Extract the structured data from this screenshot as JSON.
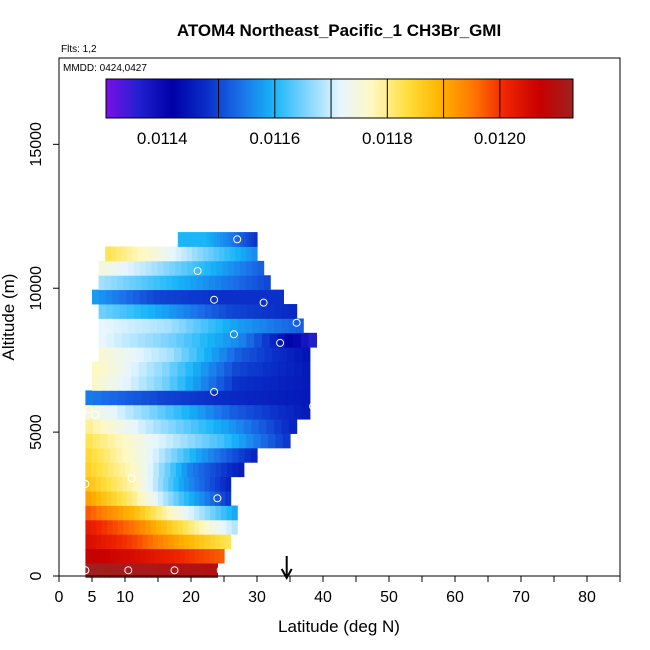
{
  "chart_data": {
    "type": "heatmap",
    "title": "ATOM4 Northeast_Pacific_1 CH3Br_GMI",
    "flights_note": "Flts: 1,2",
    "date_note": "MMDD: 0424,0427",
    "xlabel": "Latitude (deg N)",
    "ylabel": "Altitude (m)",
    "xlim": [
      0,
      85
    ],
    "ylim": [
      0,
      18000
    ],
    "x_ticks": [
      0,
      5,
      10,
      20,
      30,
      40,
      50,
      60,
      70,
      80
    ],
    "x_minor_ticks": [
      15,
      25,
      35,
      45,
      55,
      65,
      75,
      85
    ],
    "y_ticks": [
      0,
      5000,
      10000,
      15000
    ],
    "colorbar": {
      "min": 0.0113,
      "max": 0.01213,
      "tick_values": [
        0.0114,
        0.0116,
        0.0118,
        0.012
      ],
      "tick_labels": [
        "0.0114",
        "0.0116",
        "0.0118",
        "0.0120"
      ],
      "boundaries": [
        0.0115,
        0.0116,
        0.0117,
        0.0118,
        0.0119,
        0.012
      ],
      "colors": [
        "#7a10e8",
        "#2020d0",
        "#0000a8",
        "#0a2ec8",
        "#1a6ee8",
        "#16b4f8",
        "#7fd4ff",
        "#e6f6ff",
        "#fff8c0",
        "#ffe040",
        "#ffb400",
        "#ff7800",
        "#ee2200",
        "#c80000",
        "#a02020"
      ]
    },
    "altitude_bands": [
      {
        "alt": 200,
        "lat_min": 4,
        "lat_max": 24,
        "values": [
          0.01213,
          0.01212,
          0.01211,
          0.0121
        ]
      },
      {
        "alt": 700,
        "lat_min": 4,
        "lat_max": 25,
        "values": [
          0.01208,
          0.01205,
          0.01201,
          0.01197
        ]
      },
      {
        "alt": 1200,
        "lat_min": 4,
        "lat_max": 26,
        "values": [
          0.01205,
          0.01199,
          0.0119,
          0.01182
        ]
      },
      {
        "alt": 1700,
        "lat_min": 4,
        "lat_max": 27,
        "values": [
          0.01203,
          0.01195,
          0.01182,
          0.01168
        ]
      },
      {
        "alt": 2200,
        "lat_min": 4,
        "lat_max": 27,
        "values": [
          0.01198,
          0.01188,
          0.01172,
          0.01158
        ]
      },
      {
        "alt": 2700,
        "lat_min": 4,
        "lat_max": 26,
        "values": [
          0.01192,
          0.0118,
          0.01162,
          0.01148
        ]
      },
      {
        "alt": 3200,
        "lat_min": 4,
        "lat_max": 26,
        "values": [
          0.01188,
          0.01178,
          0.01158,
          0.01146
        ]
      },
      {
        "alt": 3700,
        "lat_min": 4,
        "lat_max": 28,
        "values": [
          0.01186,
          0.01176,
          0.01155,
          0.01145
        ]
      },
      {
        "alt": 4200,
        "lat_min": 4,
        "lat_max": 30,
        "values": [
          0.01185,
          0.01174,
          0.01158,
          0.01146
        ]
      },
      {
        "alt": 4700,
        "lat_min": 4,
        "lat_max": 35,
        "values": [
          0.01183,
          0.01172,
          0.01162,
          0.01148
        ]
      },
      {
        "alt": 5200,
        "lat_min": 4,
        "lat_max": 36,
        "values": [
          0.0118,
          0.01168,
          0.01158,
          0.01146
        ]
      },
      {
        "alt": 5700,
        "lat_min": 4,
        "lat_max": 38,
        "values": [
          0.01176,
          0.01164,
          0.01152,
          0.01145
        ]
      },
      {
        "alt": 6200,
        "lat_min": 4,
        "lat_max": 38,
        "values": [
          0.01155,
          0.0115,
          0.01147,
          0.01145
        ]
      },
      {
        "alt": 6700,
        "lat_min": 5,
        "lat_max": 38,
        "values": [
          0.01177,
          0.01165,
          0.01148,
          0.01145
        ]
      },
      {
        "alt": 7200,
        "lat_min": 5,
        "lat_max": 38,
        "values": [
          0.01178,
          0.01166,
          0.0115,
          0.01145
        ]
      },
      {
        "alt": 7700,
        "lat_min": 6,
        "lat_max": 38,
        "values": [
          0.01176,
          0.01168,
          0.01152,
          0.01144
        ]
      },
      {
        "alt": 8200,
        "lat_min": 6,
        "lat_max": 39,
        "values": [
          0.01172,
          0.01165,
          0.01155,
          0.01135
        ]
      },
      {
        "alt": 8700,
        "lat_min": 6,
        "lat_max": 37,
        "values": [
          0.01172,
          0.01168,
          0.01158,
          0.01152
        ]
      },
      {
        "alt": 9200,
        "lat_min": 6,
        "lat_max": 36,
        "values": [
          0.01165,
          0.01158,
          0.0115,
          0.01147
        ]
      },
      {
        "alt": 9700,
        "lat_min": 5,
        "lat_max": 34,
        "values": [
          0.01158,
          0.0115,
          0.01148,
          0.01148
        ]
      },
      {
        "alt": 10200,
        "lat_min": 6,
        "lat_max": 32,
        "values": [
          0.01168,
          0.01162,
          0.01156,
          0.0115
        ]
      },
      {
        "alt": 10700,
        "lat_min": 6,
        "lat_max": 31,
        "values": [
          0.01175,
          0.01168,
          0.0116,
          0.01152
        ]
      },
      {
        "alt": 11200,
        "lat_min": 7,
        "lat_max": 30,
        "values": [
          0.01183,
          0.01175,
          0.01165,
          0.01156
        ]
      },
      {
        "alt": 11700,
        "lat_min": 18,
        "lat_max": 30,
        "values": [
          0.0116,
          0.0116,
          0.01155,
          0.01148
        ]
      }
    ],
    "sample_points": [
      {
        "lat": 4,
        "alt": 200
      },
      {
        "lat": 10.5,
        "alt": 200
      },
      {
        "lat": 17.5,
        "alt": 200
      },
      {
        "lat": 24.5,
        "alt": 200
      },
      {
        "lat": 4,
        "alt": 3200
      },
      {
        "lat": 11,
        "alt": 3400
      },
      {
        "lat": 24,
        "alt": 2700
      },
      {
        "lat": 4.5,
        "alt": 5800
      },
      {
        "lat": 5.5,
        "alt": 5600
      },
      {
        "lat": 23.5,
        "alt": 6400
      },
      {
        "lat": 38.5,
        "alt": 5900
      },
      {
        "lat": 26.5,
        "alt": 8400
      },
      {
        "lat": 33.5,
        "alt": 8100
      },
      {
        "lat": 36,
        "alt": 8800
      },
      {
        "lat": 23.5,
        "alt": 9600
      },
      {
        "lat": 31,
        "alt": 9500
      },
      {
        "lat": 21,
        "alt": 10600
      },
      {
        "lat": 27,
        "alt": 11700
      }
    ],
    "marker_arrow_lat": 34.5
  }
}
